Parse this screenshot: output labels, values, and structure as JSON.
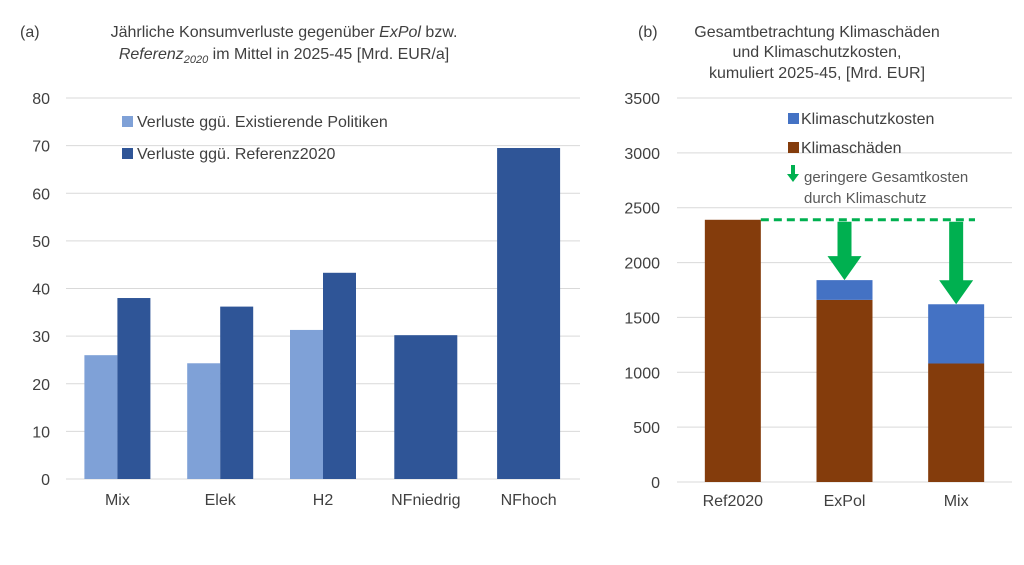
{
  "chart_data": [
    {
      "type": "bar",
      "panel_label": "(a)",
      "title_line1_parts": [
        "Jährliche Konsumverluste gegenüber ",
        "ExPol",
        " bzw."
      ],
      "title_line2_parts": [
        "Referenz",
        "2020",
        " im Mittel in 2025-45 [Mrd. EUR/a]"
      ],
      "categories": [
        "Mix",
        "Elek",
        "H2",
        "NFniedrig",
        "NFhoch"
      ],
      "series": [
        {
          "name": "Verluste ggü. Existierende Politiken",
          "color": "#7fa1d7",
          "values": [
            26,
            24.3,
            31.3,
            null,
            null
          ]
        },
        {
          "name": "Verluste ggü. Referenz2020",
          "color": "#2f5597",
          "values": [
            38,
            36.2,
            43.3,
            30.2,
            69.5
          ]
        }
      ],
      "ylim": [
        0,
        80
      ],
      "yticks": [
        0,
        10,
        20,
        30,
        40,
        50,
        60,
        70,
        80
      ],
      "grid": true,
      "legend_position": "top-left"
    },
    {
      "type": "bar",
      "stacked": true,
      "panel_label": "(b)",
      "title_lines": [
        "Gesamtbetrachtung Klimaschäden",
        "und Klimaschutzkosten,",
        "kumuliert 2025-45, [Mrd. EUR]"
      ],
      "categories": [
        "Ref2020",
        "ExPol",
        "Mix"
      ],
      "series": [
        {
          "name": "Klimaschäden",
          "color": "#843c0c",
          "values": [
            2390,
            1660,
            1080
          ]
        },
        {
          "name": "Klimaschutzkosten",
          "color": "#4472c4",
          "values": [
            0,
            180,
            540
          ]
        }
      ],
      "ylim": [
        0,
        3500
      ],
      "yticks": [
        0,
        500,
        1000,
        1500,
        2000,
        2500,
        3000,
        3500
      ],
      "grid": true,
      "legend_position": "top-right",
      "annotation_lines": [
        "geringere Gesamtkosten",
        "durch Klimaschutz"
      ],
      "arrow_color": "#00b050",
      "reference_level": 2390
    }
  ]
}
